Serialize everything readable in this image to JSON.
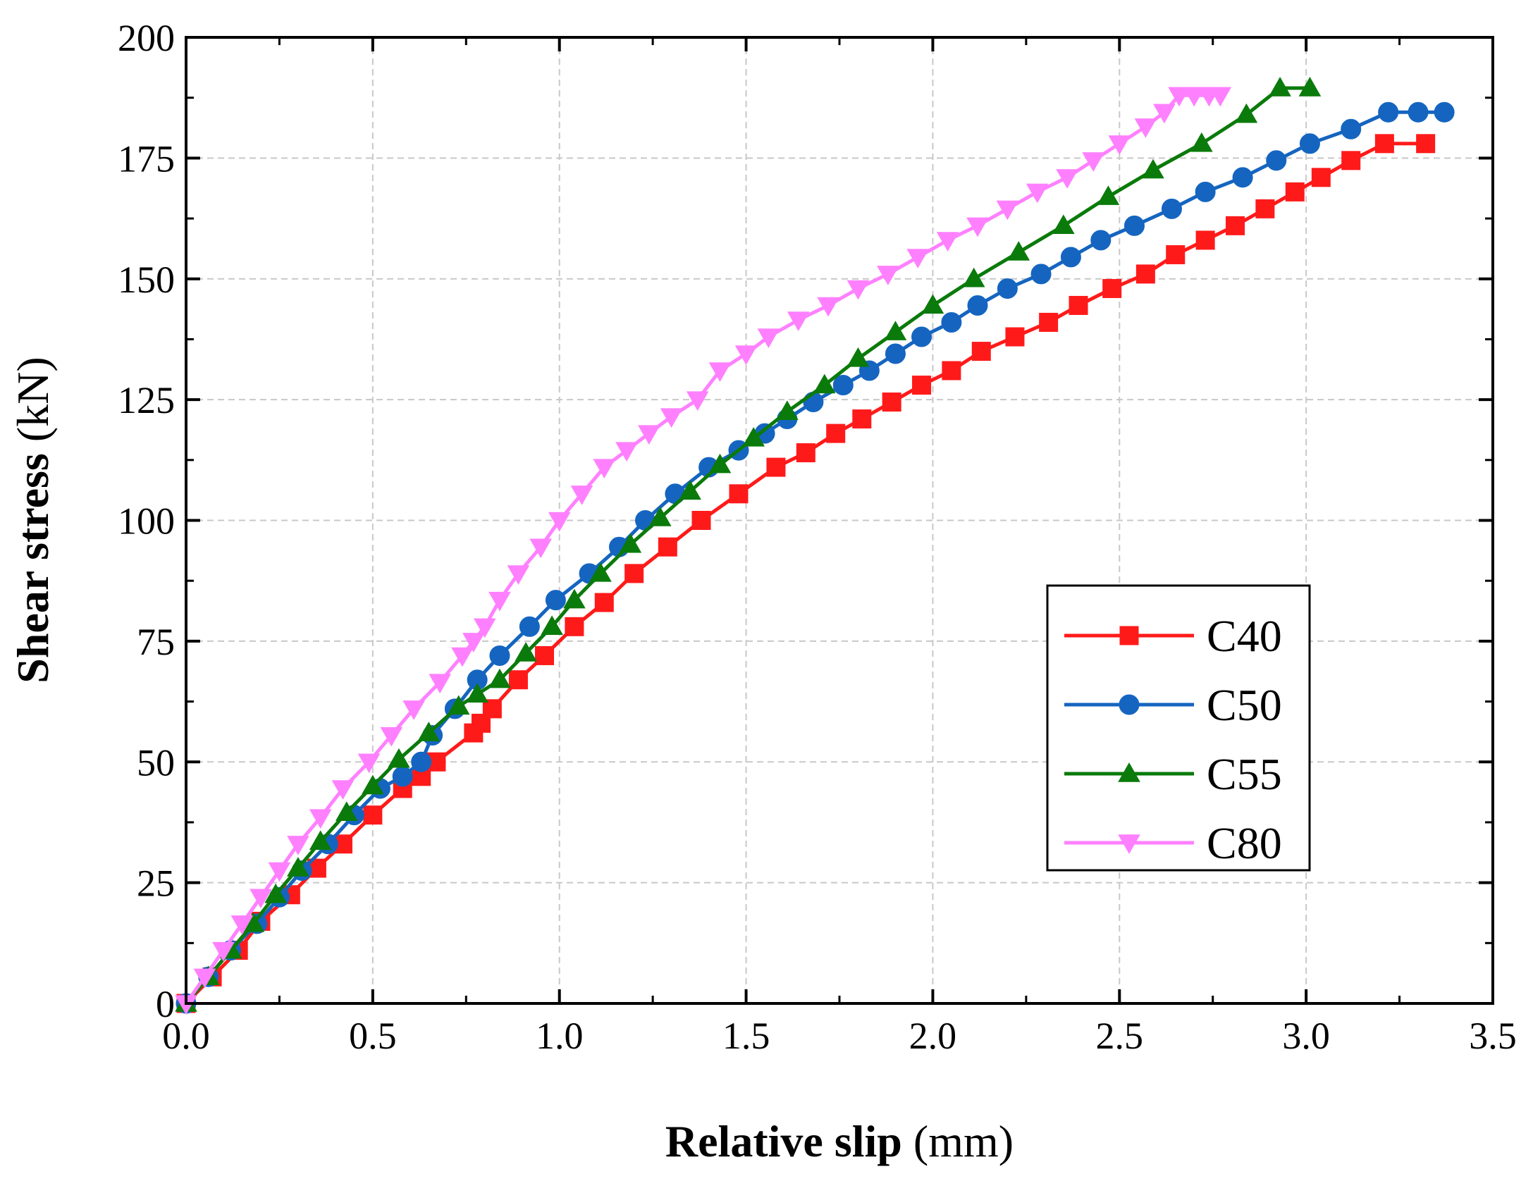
{
  "chart_data": {
    "type": "line",
    "title": "",
    "xlabel": {
      "bold": "Relative slip",
      "normal": " (mm)"
    },
    "ylabel": {
      "bold": "Shear stress",
      "normal": " (kN)"
    },
    "xlim": [
      0,
      3.5
    ],
    "ylim": [
      0,
      200
    ],
    "xticks": [
      "0.0",
      "0.5",
      "1.0",
      "1.5",
      "2.0",
      "2.5",
      "3.0",
      "3.5"
    ],
    "yticks": [
      "0",
      "25",
      "50",
      "75",
      "100",
      "125",
      "150",
      "175",
      "200"
    ],
    "grid": true,
    "legend_position": "lower-right",
    "series": [
      {
        "name": "C40",
        "color": "#ff1a1a",
        "marker": "square",
        "x": [
          0.0,
          0.07,
          0.14,
          0.2,
          0.28,
          0.35,
          0.42,
          0.5,
          0.58,
          0.63,
          0.67,
          0.77,
          0.79,
          0.82,
          0.89,
          0.96,
          1.04,
          1.12,
          1.2,
          1.29,
          1.38,
          1.48,
          1.58,
          1.66,
          1.74,
          1.81,
          1.89,
          1.97,
          2.05,
          2.13,
          2.22,
          2.31,
          2.39,
          2.48,
          2.57,
          2.65,
          2.73,
          2.81,
          2.89,
          2.97,
          3.04,
          3.12,
          3.21,
          3.32
        ],
        "y": [
          0,
          5.5,
          11,
          17,
          22.5,
          28,
          33,
          39,
          44.5,
          47,
          50,
          56,
          58,
          61,
          67,
          72,
          78,
          83,
          89,
          94.5,
          100,
          105.5,
          111,
          114,
          118,
          121,
          124.5,
          128,
          131,
          135,
          138,
          141,
          144.5,
          148,
          151,
          155,
          158,
          161,
          164.5,
          168,
          171,
          174.5,
          178,
          178
        ]
      },
      {
        "name": "C50",
        "color": "#1565c0",
        "marker": "circle",
        "x": [
          0.0,
          0.06,
          0.12,
          0.19,
          0.25,
          0.31,
          0.38,
          0.45,
          0.52,
          0.58,
          0.63,
          0.66,
          0.72,
          0.78,
          0.84,
          0.92,
          0.99,
          1.08,
          1.16,
          1.23,
          1.31,
          1.4,
          1.48,
          1.55,
          1.61,
          1.68,
          1.76,
          1.83,
          1.9,
          1.97,
          2.05,
          2.12,
          2.2,
          2.29,
          2.37,
          2.45,
          2.54,
          2.64,
          2.73,
          2.83,
          2.92,
          3.01,
          3.12,
          3.22,
          3.3,
          3.37
        ],
        "y": [
          0,
          5.5,
          11,
          16.5,
          22,
          27.5,
          33,
          39,
          44.5,
          47,
          50,
          55.5,
          61,
          67,
          72,
          78,
          83.5,
          89,
          94.5,
          100,
          105.5,
          111,
          114.5,
          118,
          121,
          124.5,
          128,
          131,
          134.5,
          138,
          141,
          144.5,
          148,
          151,
          154.5,
          158,
          161,
          164.5,
          168,
          171,
          174.5,
          178,
          181,
          184.5,
          184.5,
          184.5
        ]
      },
      {
        "name": "C55",
        "color": "#0a7a0a",
        "marker": "triangle-up",
        "x": [
          0.0,
          0.06,
          0.12,
          0.18,
          0.24,
          0.3,
          0.36,
          0.43,
          0.5,
          0.57,
          0.65,
          0.73,
          0.78,
          0.84,
          0.91,
          0.98,
          1.04,
          1.11,
          1.19,
          1.27,
          1.35,
          1.43,
          1.52,
          1.61,
          1.71,
          1.8,
          1.9,
          2.0,
          2.11,
          2.23,
          2.35,
          2.47,
          2.59,
          2.72,
          2.84,
          2.93,
          3.01
        ],
        "y": [
          0,
          5.5,
          11,
          16.5,
          22.5,
          28,
          33.5,
          39.5,
          45,
          50.5,
          56,
          61.5,
          64,
          67,
          72.5,
          78,
          83.5,
          89,
          95,
          100.5,
          106,
          111.5,
          117,
          122.5,
          128,
          133.5,
          139,
          144.5,
          150,
          155.5,
          161,
          167,
          172.5,
          178,
          184,
          189.5,
          189.5
        ]
      },
      {
        "name": "C80",
        "color": "#ff80ff",
        "marker": "triangle-down",
        "x": [
          0.0,
          0.05,
          0.1,
          0.15,
          0.2,
          0.25,
          0.3,
          0.36,
          0.42,
          0.49,
          0.55,
          0.61,
          0.68,
          0.74,
          0.77,
          0.8,
          0.84,
          0.89,
          0.95,
          1.0,
          1.06,
          1.12,
          1.18,
          1.24,
          1.3,
          1.37,
          1.43,
          1.5,
          1.56,
          1.64,
          1.72,
          1.8,
          1.88,
          1.96,
          2.04,
          2.12,
          2.2,
          2.28,
          2.36,
          2.43,
          2.5,
          2.57,
          2.62,
          2.66,
          2.7,
          2.74,
          2.77
        ],
        "y": [
          0,
          5.5,
          11,
          16.5,
          22,
          27.5,
          33,
          38.5,
          44.5,
          50,
          55.5,
          61,
          66.5,
          72,
          75,
          78,
          83.5,
          89,
          94.5,
          100,
          105.5,
          111,
          114.5,
          118,
          121.5,
          125,
          131,
          134.5,
          138,
          141.5,
          144.5,
          148,
          151,
          154.5,
          158,
          161,
          164.5,
          168,
          171,
          174.5,
          178,
          181.5,
          184.5,
          188,
          188,
          188,
          188
        ]
      }
    ]
  }
}
